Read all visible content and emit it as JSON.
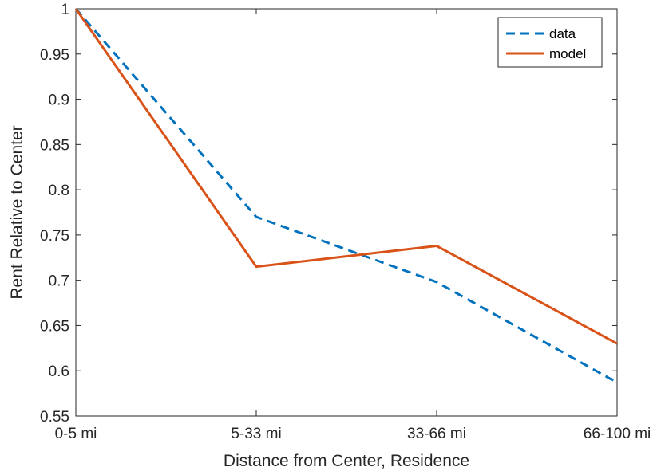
{
  "chart_data": {
    "type": "line",
    "title": "",
    "xlabel": "Distance from Center, Residence",
    "ylabel": "Rent Relative to Center",
    "categories": [
      "0-5 mi",
      "5-33 mi",
      "33-66 mi",
      "66-100 mi"
    ],
    "ylim": [
      0.55,
      1
    ],
    "yticks": [
      0.55,
      0.6,
      0.65,
      0.7,
      0.75,
      0.8,
      0.85,
      0.9,
      0.95,
      1
    ],
    "ytick_labels": [
      "0.55",
      "0.6",
      "0.65",
      "0.7",
      "0.75",
      "0.8",
      "0.85",
      "0.9",
      "0.95",
      "1"
    ],
    "grid": false,
    "legend_position": "top-right",
    "series": [
      {
        "name": "data",
        "values": [
          1.0,
          0.77,
          0.698,
          0.587
        ],
        "color": "#0072BD",
        "style": "dashed"
      },
      {
        "name": "model",
        "values": [
          1.0,
          0.715,
          0.738,
          0.63
        ],
        "color": "#D95319",
        "style": "solid"
      }
    ]
  }
}
